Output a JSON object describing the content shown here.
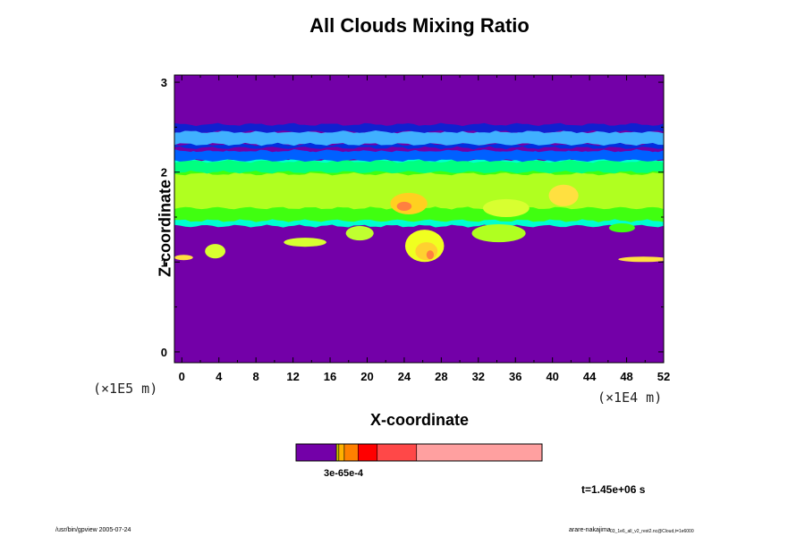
{
  "chart_data": {
    "type": "heatmap",
    "title": "All Clouds Mixing Ratio",
    "xlabel": "X-coordinate",
    "ylabel": "Z-coordinate",
    "x_scale_label": "(×1E4 m)",
    "y_scale_label": "(×1E5 m)",
    "x_ticks": [
      "0",
      "4",
      "8",
      "12",
      "16",
      "20",
      "24",
      "28",
      "32",
      "36",
      "40",
      "44",
      "48",
      "52"
    ],
    "y_ticks": [
      "0",
      "1",
      "2",
      "3"
    ],
    "xlim": [
      -0.8,
      52
    ],
    "ylim": [
      -0.12,
      3.08
    ],
    "background_color": "#7300a8",
    "colorbar": {
      "colors": [
        "#7300a8",
        "#c8c800",
        "#ffb000",
        "#ff8000",
        "#ff0000",
        "#ff4848",
        "#ffa0a0"
      ],
      "bounds": [
        0,
        0.164,
        0.174,
        0.196,
        0.252,
        0.33,
        0.49,
        1.0
      ],
      "tick_labels": "3e-65e-4"
    },
    "layers": [
      {
        "name": "cyan-base",
        "color": "#00ffd0",
        "z0": 1.4,
        "z1": 2.14
      },
      {
        "name": "green-lower",
        "color": "#40ff10",
        "z0": 1.46,
        "z1": 2.05
      },
      {
        "name": "yellowgreen",
        "color": "#b0ff20",
        "z0": 1.6,
        "z1": 1.98
      },
      {
        "name": "green-top",
        "color": "#00ff80",
        "z0": 2.0,
        "z1": 2.12
      },
      {
        "name": "blue-band",
        "color": "#0060ff",
        "z0": 2.13,
        "z1": 2.24
      },
      {
        "name": "purple-gap",
        "color": "#7300a8",
        "z0": 2.24,
        "z1": 2.27
      },
      {
        "name": "blue-band-2",
        "color": "#0030e0",
        "z0": 2.27,
        "z1": 2.31
      },
      {
        "name": "lightblue",
        "color": "#40b0ff",
        "z0": 2.31,
        "z1": 2.45
      },
      {
        "name": "blue-top",
        "color": "#1020d0",
        "z0": 2.45,
        "z1": 2.53
      }
    ],
    "blobs": [
      {
        "x": 24.5,
        "z": 1.65,
        "rx": 2.0,
        "rz": 0.12,
        "color": "#ffd020"
      },
      {
        "x": 24.0,
        "z": 1.62,
        "rx": 0.8,
        "rz": 0.05,
        "color": "#ff8040"
      },
      {
        "x": 41.2,
        "z": 1.74,
        "rx": 1.6,
        "rz": 0.12,
        "color": "#ffe040"
      },
      {
        "x": 35.0,
        "z": 1.6,
        "rx": 2.5,
        "rz": 0.1,
        "color": "#d8ff30"
      },
      {
        "x": 26.2,
        "z": 1.18,
        "rx": 2.1,
        "rz": 0.18,
        "color": "#f0ff20"
      },
      {
        "x": 26.4,
        "z": 1.12,
        "rx": 1.2,
        "rz": 0.1,
        "color": "#ffd030"
      },
      {
        "x": 26.8,
        "z": 1.08,
        "rx": 0.4,
        "rz": 0.05,
        "color": "#ff8040"
      },
      {
        "x": 34.2,
        "z": 1.32,
        "rx": 2.9,
        "rz": 0.1,
        "color": "#b0ff20"
      },
      {
        "x": 13.3,
        "z": 1.22,
        "rx": 2.3,
        "rz": 0.05,
        "color": "#d8ff30"
      },
      {
        "x": 19.2,
        "z": 1.32,
        "rx": 1.5,
        "rz": 0.08,
        "color": "#c0ff30"
      },
      {
        "x": 3.6,
        "z": 1.12,
        "rx": 1.1,
        "rz": 0.08,
        "color": "#d8ff30"
      },
      {
        "x": 0.2,
        "z": 1.05,
        "rx": 1.0,
        "rz": 0.03,
        "color": "#ffe040"
      },
      {
        "x": 49.8,
        "z": 1.03,
        "rx": 2.7,
        "rz": 0.03,
        "color": "#ffe040"
      },
      {
        "x": 47.5,
        "z": 1.38,
        "rx": 1.4,
        "rz": 0.05,
        "color": "#40ff10"
      }
    ],
    "time_label": "t=1.45e+06 s",
    "footer_left": "/usr/bin/gpview 2005-07-24",
    "footer_right_main": "arare-nakajima",
    "footer_right_sub": "03_1e6_all_v2_rest2.nc@Cloud,t=1e6000"
  }
}
